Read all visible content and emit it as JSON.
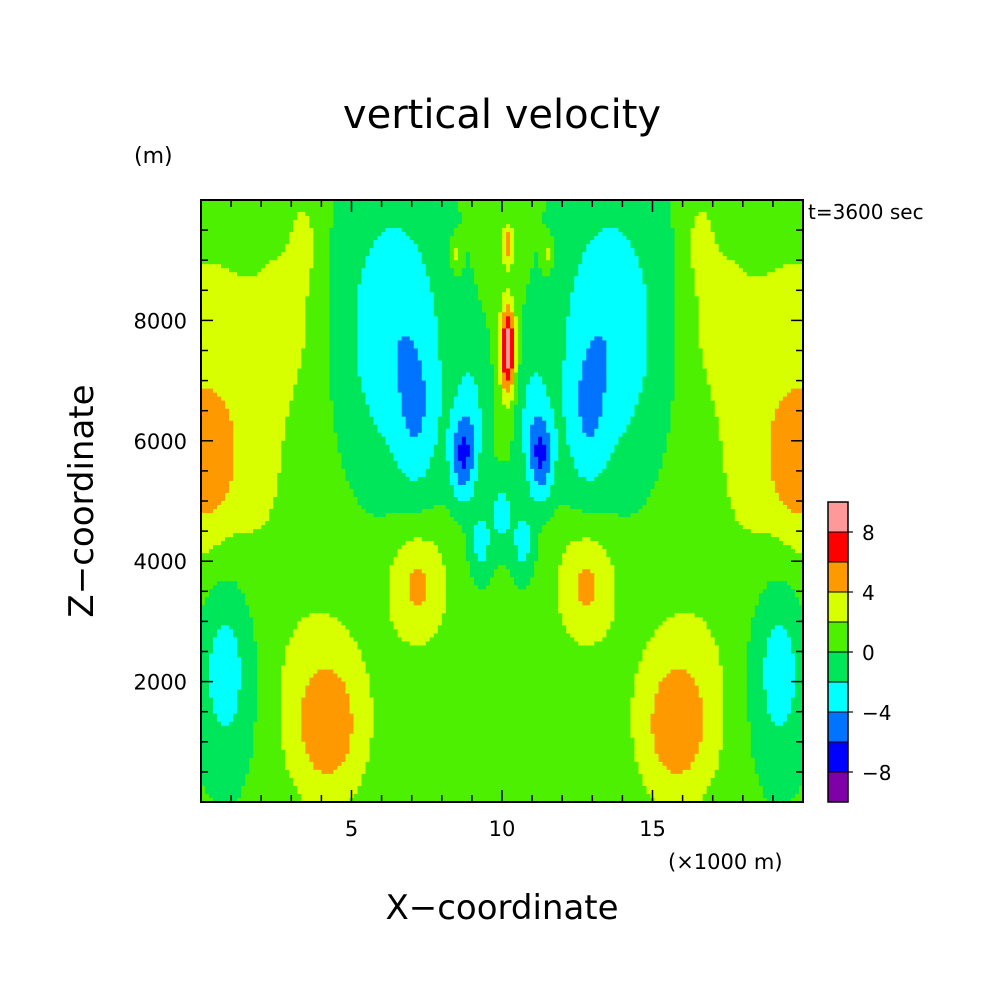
{
  "chart_data": {
    "type": "heatmap",
    "title": "vertical velocity",
    "xlabel": "X−coordinate",
    "ylabel": "Z−coordinate",
    "x_unit": "(×1000 m)",
    "y_unit": "(m)",
    "time_label": "t=3600 sec",
    "xlim": [
      0,
      20
    ],
    "ylim": [
      0,
      10000
    ],
    "x_ticks": [
      5,
      10,
      15
    ],
    "x_tick_labels": [
      "5",
      "10",
      "15"
    ],
    "y_ticks": [
      2000,
      4000,
      6000,
      8000
    ],
    "y_tick_labels": [
      "2000",
      "4000",
      "6000",
      "8000"
    ],
    "colorbar": {
      "levels": [
        -10,
        -8,
        -6,
        -4,
        -2,
        0,
        2,
        4,
        6,
        8,
        10
      ],
      "colors": [
        "#7f00a8",
        "#0000ff",
        "#0073ff",
        "#00ffff",
        "#00e65a",
        "#4cf000",
        "#d7ff00",
        "#ff9900",
        "#ff0000",
        "#ff9999"
      ],
      "labels": [
        "8",
        "4",
        "0",
        "−4",
        "−8"
      ],
      "label_values": [
        8,
        4,
        0,
        -4,
        -8
      ]
    },
    "background_value": 0.5,
    "features": [
      {
        "x": 0.2,
        "z": 6300,
        "sx": 2.0,
        "sz": 2100,
        "amp": 3.3
      },
      {
        "x": 19.8,
        "z": 6300,
        "sx": 2.0,
        "sz": 2100,
        "amp": 3.3
      },
      {
        "x": 0.2,
        "z": 5500,
        "sx": 0.6,
        "sz": 700,
        "amp": 2.2
      },
      {
        "x": 19.8,
        "z": 5500,
        "sx": 0.6,
        "sz": 700,
        "amp": 2.2
      },
      {
        "x": 3.0,
        "z": 8200,
        "sx": 0.7,
        "sz": 900,
        "amp": 1.6
      },
      {
        "x": 17.0,
        "z": 8200,
        "sx": 0.7,
        "sz": 900,
        "amp": 1.6
      },
      {
        "x": 3.4,
        "z": 9300,
        "sx": 0.25,
        "sz": 400,
        "amp": 2.5
      },
      {
        "x": 16.6,
        "z": 9300,
        "sx": 0.25,
        "sz": 400,
        "amp": 2.5
      },
      {
        "x": 0.8,
        "z": 2300,
        "sx": 0.7,
        "sz": 1200,
        "amp": -4.0
      },
      {
        "x": 19.2,
        "z": 2300,
        "sx": 0.7,
        "sz": 1200,
        "amp": -4.0
      },
      {
        "x": 4.2,
        "z": 1200,
        "sx": 0.9,
        "sz": 900,
        "amp": 4.2
      },
      {
        "x": 15.8,
        "z": 1200,
        "sx": 0.9,
        "sz": 900,
        "amp": 4.2
      },
      {
        "x": 4.0,
        "z": 2200,
        "sx": 1.4,
        "sz": 1300,
        "amp": 1.2
      },
      {
        "x": 16.0,
        "z": 2200,
        "sx": 1.4,
        "sz": 1300,
        "amp": 1.2
      },
      {
        "x": 7.2,
        "z": 3600,
        "sx": 0.7,
        "sz": 700,
        "amp": 4.0
      },
      {
        "x": 12.8,
        "z": 3600,
        "sx": 0.7,
        "sz": 700,
        "amp": 4.0
      },
      {
        "x": 6.4,
        "z": 7800,
        "sx": 1.3,
        "sz": 1700,
        "amp": -4.2
      },
      {
        "x": 13.6,
        "z": 7800,
        "sx": 1.3,
        "sz": 1700,
        "amp": -4.2
      },
      {
        "x": 7.2,
        "z": 6300,
        "sx": 0.5,
        "sz": 900,
        "amp": -2.5
      },
      {
        "x": 12.8,
        "z": 6300,
        "sx": 0.5,
        "sz": 900,
        "amp": -2.5
      },
      {
        "x": 8.7,
        "z": 5700,
        "sx": 0.3,
        "sz": 500,
        "amp": -5.5
      },
      {
        "x": 11.3,
        "z": 5700,
        "sx": 0.3,
        "sz": 500,
        "amp": -5.5
      },
      {
        "x": 9.0,
        "z": 6500,
        "sx": 0.4,
        "sz": 800,
        "amp": -2.5
      },
      {
        "x": 11.0,
        "z": 6500,
        "sx": 0.4,
        "sz": 800,
        "amp": -2.5
      },
      {
        "x": 9.3,
        "z": 4300,
        "sx": 0.25,
        "sz": 400,
        "amp": -3.5
      },
      {
        "x": 10.7,
        "z": 4300,
        "sx": 0.25,
        "sz": 400,
        "amp": -3.5
      },
      {
        "x": 10.0,
        "z": 4800,
        "sx": 0.25,
        "sz": 400,
        "amp": -3.5
      },
      {
        "x": 10.2,
        "z": 7500,
        "sx": 0.18,
        "sz": 550,
        "amp": 9.5
      },
      {
        "x": 10.2,
        "z": 9250,
        "sx": 0.15,
        "sz": 250,
        "amp": 5.0
      },
      {
        "x": 8.5,
        "z": 9100,
        "sx": 0.12,
        "sz": 200,
        "amp": 3.0
      },
      {
        "x": 11.5,
        "z": 9100,
        "sx": 0.12,
        "sz": 200,
        "amp": 3.0
      }
    ]
  }
}
